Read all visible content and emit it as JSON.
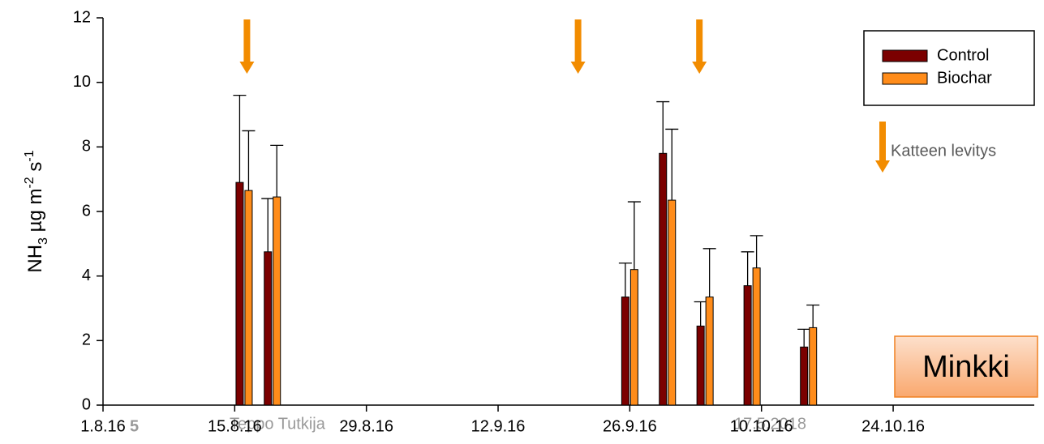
{
  "chart_data": {
    "type": "bar",
    "y_label": [
      "NH",
      "3",
      " µg m",
      "-2",
      " s",
      "-1"
    ],
    "x": [
      15,
      18,
      56,
      60,
      64,
      69,
      75
    ],
    "xlim": [
      0,
      99
    ],
    "xticks": [
      {
        "value": 0,
        "label": "1.8.16"
      },
      {
        "value": 14,
        "label": "15.8.16"
      },
      {
        "value": 28,
        "label": "29.8.16"
      },
      {
        "value": 42,
        "label": "12.9.16"
      },
      {
        "value": 56,
        "label": "26.9.16"
      },
      {
        "value": 70,
        "label": "10.10.16"
      },
      {
        "value": 84,
        "label": "24.10.16"
      }
    ],
    "ylim": [
      0,
      12
    ],
    "yticks": [
      0,
      2,
      4,
      6,
      8,
      10,
      12
    ],
    "series": [
      {
        "name": "Control",
        "color": "#7b0000",
        "values": [
          6.9,
          4.75,
          3.35,
          7.8,
          2.45,
          3.7,
          1.8
        ],
        "errors": [
          2.7,
          1.65,
          1.05,
          1.6,
          0.75,
          1.05,
          0.55
        ]
      },
      {
        "name": "Biochar",
        "color": "#ff8c1a",
        "values": [
          6.65,
          6.45,
          4.2,
          6.35,
          3.35,
          4.25,
          2.4
        ],
        "errors": [
          1.85,
          1.6,
          2.1,
          2.2,
          1.5,
          1.0,
          0.7
        ]
      }
    ],
    "arrows": [
      15.3,
      50.5,
      63.4
    ],
    "arrow_legend": "Katteen levitys",
    "badge": "Minkki",
    "footer": {
      "page": "5",
      "author": "Teppo Tutkija",
      "date": "17.5.2018"
    }
  }
}
